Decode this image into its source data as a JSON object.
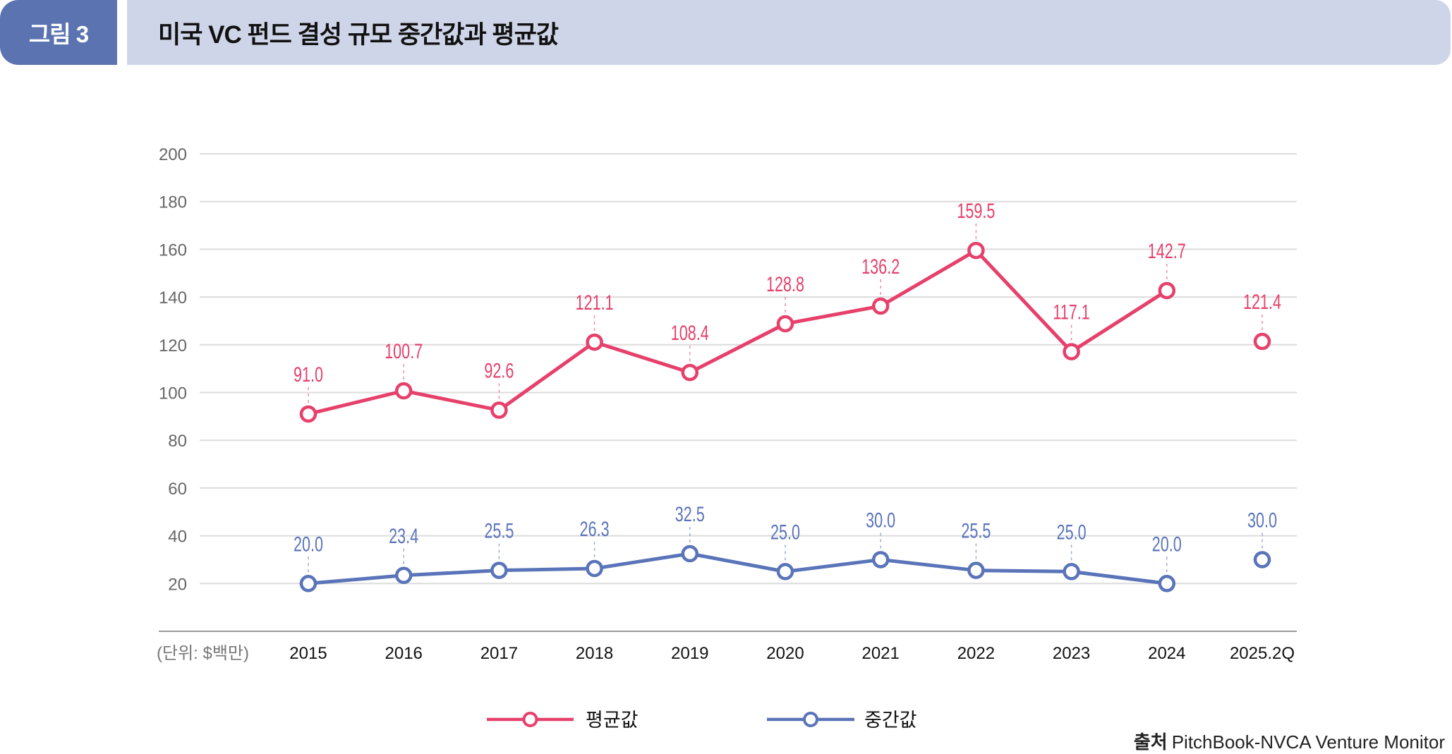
{
  "header": {
    "figure_label": "그림 3",
    "title": "미국 VC 펀드 결성 규모 중간값과 평균값"
  },
  "chart_data": {
    "type": "line",
    "title": "미국 VC 펀드 결성 규모 중간값과 평균값",
    "unit_label": "(단위: $백만)",
    "xlabel": "",
    "ylabel": "",
    "ylim": [
      0,
      200
    ],
    "yticks": [
      20,
      40,
      60,
      80,
      100,
      120,
      140,
      160,
      180,
      200
    ],
    "grid": true,
    "categories": [
      "2015",
      "2016",
      "2017",
      "2018",
      "2019",
      "2020",
      "2021",
      "2022",
      "2023",
      "2024",
      "2025.2Q"
    ],
    "series": [
      {
        "name": "평균값",
        "color": "#e6406b",
        "values": [
          91.0,
          100.7,
          92.6,
          121.1,
          108.4,
          128.8,
          136.2,
          159.5,
          117.1,
          142.7,
          121.4
        ],
        "labels": [
          "91.0",
          "100.7",
          "92.6",
          "121.1",
          "108.4",
          "128.8",
          "136.2",
          "159.5",
          "117.1",
          "142.7",
          "121.4"
        ],
        "connected_until_index": 9
      },
      {
        "name": "중간값",
        "color": "#5a74b9",
        "values": [
          20.0,
          23.4,
          25.5,
          26.3,
          32.5,
          25.0,
          30.0,
          25.5,
          25.0,
          20.0,
          30.0
        ],
        "labels": [
          "20.0",
          "23.4",
          "25.5",
          "26.3",
          "32.5",
          "25.0",
          "30.0",
          "25.5",
          "25.0",
          "20.0",
          "30.0"
        ],
        "connected_until_index": 9
      }
    ],
    "legend": {
      "placement": "bottom-center",
      "entries": [
        "평균값",
        "중간값"
      ]
    }
  },
  "source": {
    "label": "출처",
    "text": "PitchBook-NVCA Venture Monitor"
  }
}
